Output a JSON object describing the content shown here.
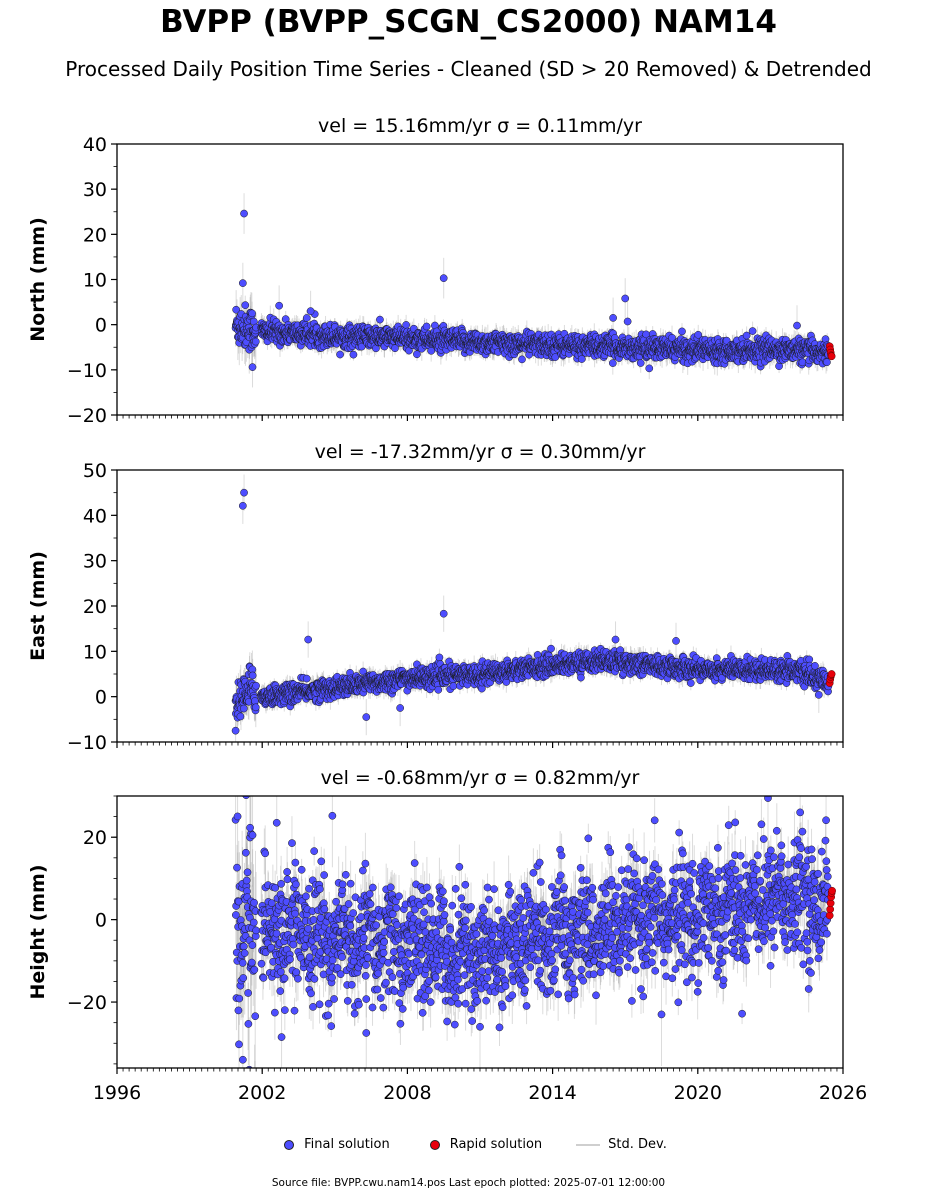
{
  "header": {
    "title": "BVPP (BVPP_SCGN_CS2000) NAM14",
    "subtitle": "Processed Daily Position Time Series - Cleaned (SD > 20 Removed) & Detrended"
  },
  "legend": {
    "final": "Final solution",
    "rapid": "Rapid solution",
    "std": "Std. Dev."
  },
  "footer": "Source file: BVPP.cwu.nam14.pos  Last epoch plotted: 2025-07-01 12:00:00",
  "colors": {
    "final": "#4d4dff",
    "rapid": "#e8000b",
    "std": "#9a9a9a",
    "edge": "#1a1a1a"
  },
  "chart_data": [
    {
      "type": "scatter",
      "panel": "north",
      "title": "vel = 15.16mm/yr   σ = 0.11mm/yr",
      "ylabel": "North (mm)",
      "xlim": [
        1996,
        2026
      ],
      "ylim": [
        -20,
        40
      ],
      "yticks": [
        -20,
        -10,
        0,
        10,
        20,
        30,
        40
      ],
      "xticks": [
        1996,
        2002,
        2008,
        2014,
        2020,
        2026
      ],
      "show_xtick_labels": false,
      "trend": [
        [
          2000.9,
          0
        ],
        [
          2002,
          -1.5
        ],
        [
          2005,
          -2.5
        ],
        [
          2008,
          -3
        ],
        [
          2011,
          -4
        ],
        [
          2014,
          -4.5
        ],
        [
          2017,
          -5
        ],
        [
          2020,
          -5.5
        ],
        [
          2023,
          -5.5
        ],
        [
          2025.4,
          -6
        ]
      ],
      "noise": 1.2,
      "err": 1.8,
      "outliers": [
        [
          2001.25,
          24.6
        ],
        [
          2001.2,
          9.2
        ],
        [
          2002.7,
          4.2
        ],
        [
          2004.0,
          3.0
        ],
        [
          2009.5,
          10.3
        ],
        [
          2016.5,
          1.5
        ],
        [
          2017.0,
          5.8
        ],
        [
          2017.1,
          0.7
        ],
        [
          2024.1,
          -0.2
        ],
        [
          2001.6,
          -9.4
        ]
      ],
      "rapid": [
        -4.8,
        -5.5,
        -6.2,
        -6.8,
        -7.0
      ]
    },
    {
      "type": "scatter",
      "panel": "east",
      "title": "vel = -17.32mm/yr   σ = 0.30mm/yr",
      "ylabel": "East (mm)",
      "xlim": [
        1996,
        2026
      ],
      "ylim": [
        -10,
        50
      ],
      "yticks": [
        -10,
        0,
        10,
        20,
        30,
        40,
        50
      ],
      "xticks": [
        1996,
        2002,
        2008,
        2014,
        2020,
        2026
      ],
      "show_xtick_labels": false,
      "trend": [
        [
          2000.9,
          -2
        ],
        [
          2001.5,
          2
        ],
        [
          2002,
          0
        ],
        [
          2005,
          2
        ],
        [
          2008,
          4
        ],
        [
          2011,
          5
        ],
        [
          2014,
          7
        ],
        [
          2016,
          8
        ],
        [
          2018,
          7
        ],
        [
          2020,
          6
        ],
        [
          2022,
          6
        ],
        [
          2024,
          6
        ],
        [
          2025.4,
          3
        ]
      ],
      "noise": 1.1,
      "err": 1.6,
      "outliers": [
        [
          2001.25,
          45.0
        ],
        [
          2001.2,
          42.1
        ],
        [
          2003.9,
          12.6
        ],
        [
          2009.5,
          18.3
        ],
        [
          2016.6,
          12.6
        ],
        [
          2019.1,
          12.3
        ],
        [
          2007.7,
          -2.5
        ],
        [
          2006.3,
          -4.5
        ],
        [
          2000.9,
          -7.5
        ],
        [
          2025.0,
          0.4
        ]
      ],
      "rapid": [
        3.0,
        3.8,
        4.4,
        4.8,
        5.0
      ]
    },
    {
      "type": "scatter",
      "panel": "height",
      "title": "vel = -0.68mm/yr   σ = 0.82mm/yr",
      "ylabel": "Height (mm)",
      "xlim": [
        1996,
        2026
      ],
      "ylim": [
        -36,
        30
      ],
      "yticks": [
        -20,
        0,
        20
      ],
      "xticks": [
        1996,
        2002,
        2008,
        2014,
        2020,
        2026
      ],
      "xtick_labels": [
        "1996",
        "2002",
        "2008",
        "2014",
        "2020",
        "2026"
      ],
      "show_xtick_labels": true,
      "trend": [
        [
          2000.9,
          -5
        ],
        [
          2002,
          -3
        ],
        [
          2005,
          -5
        ],
        [
          2008,
          -6
        ],
        [
          2011,
          -8
        ],
        [
          2014,
          -4
        ],
        [
          2017,
          -2
        ],
        [
          2020,
          2
        ],
        [
          2022,
          4
        ],
        [
          2023,
          6
        ],
        [
          2025.4,
          4
        ]
      ],
      "noise": 7.0,
      "err": 5.0,
      "outliers": [
        [
          2001.5,
          22.3
        ],
        [
          2001.6,
          20.5
        ],
        [
          2002.6,
          23.5
        ],
        [
          2004.9,
          25.2
        ],
        [
          2022.9,
          29.5
        ],
        [
          2001.2,
          -34
        ],
        [
          2002.8,
          -28.5
        ],
        [
          2006.3,
          -27.5
        ],
        [
          2011.0,
          -26
        ],
        [
          2018.5,
          -23
        ]
      ],
      "rapid": [
        1.0,
        2.5,
        4.0,
        5.5,
        6.5,
        7.0
      ]
    }
  ]
}
